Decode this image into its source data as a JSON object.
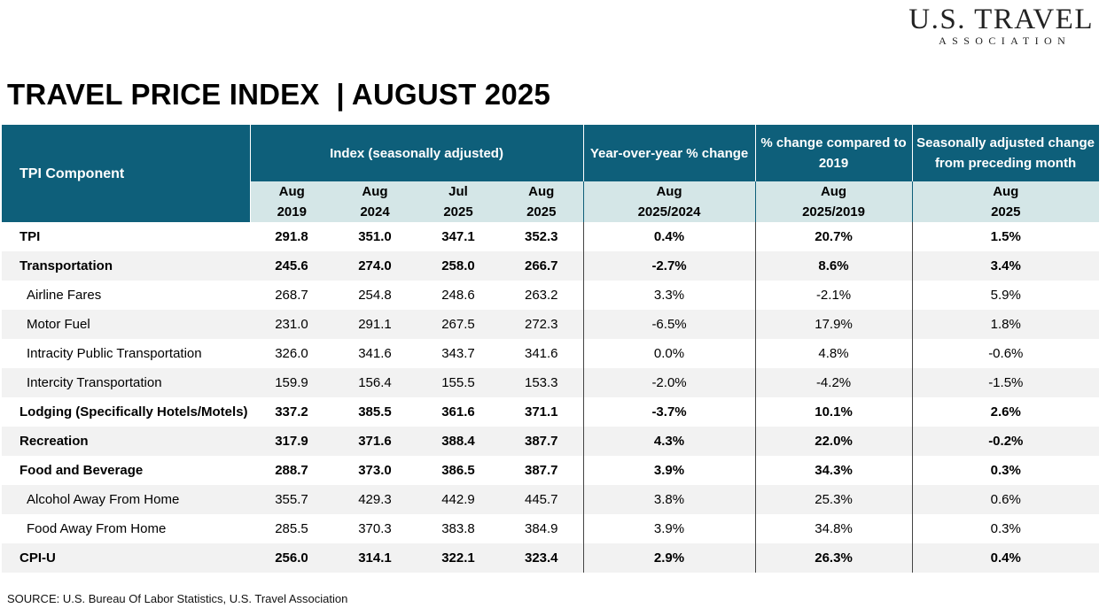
{
  "logo": {
    "main": "U.S. TRAVEL",
    "sub": "ASSOCIATION"
  },
  "title": "TRAVEL PRICE INDEX  | AUGUST 2025",
  "header": {
    "component": "TPI Component",
    "index": "Index  (seasonally adjusted)",
    "yoy": "Year-over-year % change",
    "vs2019": "% change compared to 2019",
    "sa_change": "Seasonally adjusted change from preceding month"
  },
  "subheader": {
    "col1": [
      "Aug",
      "2019"
    ],
    "col2": [
      "Aug",
      "2024"
    ],
    "col3": [
      "Jul",
      "2025"
    ],
    "col4": [
      "Aug",
      "2025"
    ],
    "col5": [
      "Aug",
      "2025/2024"
    ],
    "col6": [
      "Aug",
      "2025/2019"
    ],
    "col7": [
      "Aug",
      "2025"
    ]
  },
  "rows": [
    {
      "label": "TPI",
      "values": [
        "291.8",
        "351.0",
        "347.1",
        "352.3",
        "0.4%",
        "20.7%",
        "1.5%"
      ],
      "bold": true,
      "sub": false
    },
    {
      "label": "Transportation",
      "values": [
        "245.6",
        "274.0",
        "258.0",
        "266.7",
        "-2.7%",
        "8.6%",
        "3.4%"
      ],
      "bold": true,
      "sub": false
    },
    {
      "label": "Airline Fares",
      "values": [
        "268.7",
        "254.8",
        "248.6",
        "263.2",
        "3.3%",
        "-2.1%",
        "5.9%"
      ],
      "bold": false,
      "sub": true
    },
    {
      "label": "Motor Fuel",
      "values": [
        "231.0",
        "291.1",
        "267.5",
        "272.3",
        "-6.5%",
        "17.9%",
        "1.8%"
      ],
      "bold": false,
      "sub": true
    },
    {
      "label": "Intracity Public Transportation",
      "values": [
        "326.0",
        "341.6",
        "343.7",
        "341.6",
        "0.0%",
        "4.8%",
        "-0.6%"
      ],
      "bold": false,
      "sub": true
    },
    {
      "label": "Intercity Transportation",
      "values": [
        "159.9",
        "156.4",
        "155.5",
        "153.3",
        "-2.0%",
        "-4.2%",
        "-1.5%"
      ],
      "bold": false,
      "sub": true
    },
    {
      "label": "Lodging (Specifically Hotels/Motels)",
      "values": [
        "337.2",
        "385.5",
        "361.6",
        "371.1",
        "-3.7%",
        "10.1%",
        "2.6%"
      ],
      "bold": true,
      "sub": false
    },
    {
      "label": "Recreation",
      "values": [
        "317.9",
        "371.6",
        "388.4",
        "387.7",
        "4.3%",
        "22.0%",
        "-0.2%"
      ],
      "bold": true,
      "sub": false
    },
    {
      "label": "Food and Beverage",
      "values": [
        "288.7",
        "373.0",
        "386.5",
        "387.7",
        "3.9%",
        "34.3%",
        "0.3%"
      ],
      "bold": true,
      "sub": false
    },
    {
      "label": "Alcohol Away From Home",
      "values": [
        "355.7",
        "429.3",
        "442.9",
        "445.7",
        "3.8%",
        "25.3%",
        "0.6%"
      ],
      "bold": false,
      "sub": true
    },
    {
      "label": "Food Away From Home",
      "values": [
        "285.5",
        "370.3",
        "383.8",
        "384.9",
        "3.9%",
        "34.8%",
        "0.3%"
      ],
      "bold": false,
      "sub": true
    },
    {
      "label": "CPI-U",
      "values": [
        "256.0",
        "314.1",
        "322.1",
        "323.4",
        "2.9%",
        "26.3%",
        "0.4%"
      ],
      "bold": true,
      "sub": false
    }
  ],
  "source": "SOURCE: U.S. Bureau Of Labor Statistics, U.S. Travel Association"
}
